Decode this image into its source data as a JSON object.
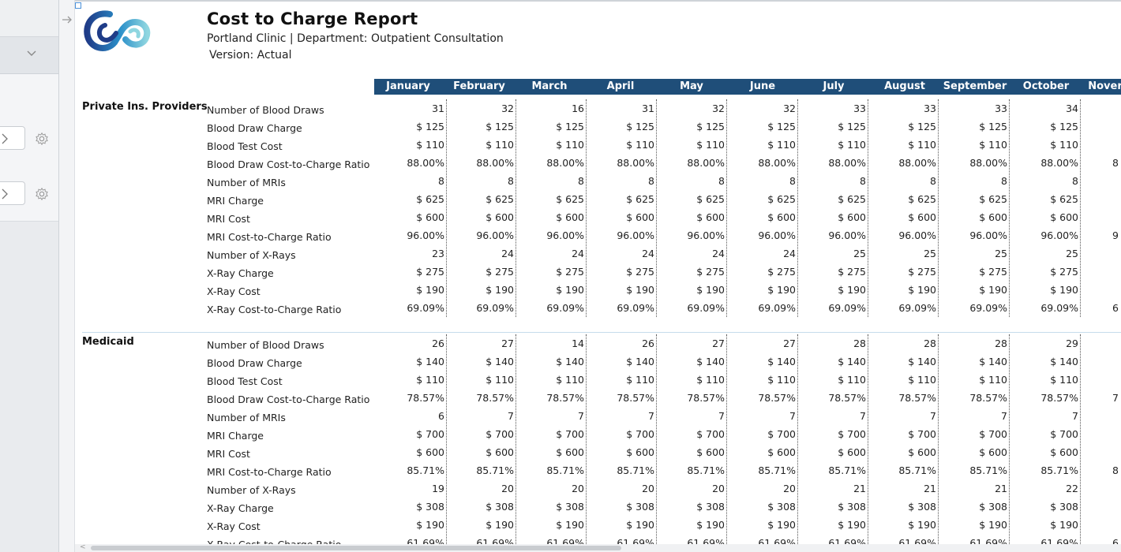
{
  "report": {
    "title": "Cost to Charge Report",
    "subtitle": "Portland Clinic | Department: Outpatient Consultation",
    "version": "Version: Actual"
  },
  "months": [
    "January",
    "February",
    "March",
    "April",
    "May",
    "June",
    "July",
    "August",
    "September",
    "October",
    "Nover"
  ],
  "groups": [
    {
      "name": "Private Ins. Providers",
      "rows": [
        {
          "label": "Number of  Blood Draws",
          "values": [
            "31",
            "32",
            "16",
            "31",
            "32",
            "32",
            "33",
            "33",
            "33",
            "34"
          ]
        },
        {
          "label": "Blood Draw Charge",
          "values": [
            "$ 125",
            "$ 125",
            "$ 125",
            "$ 125",
            "$ 125",
            "$ 125",
            "$ 125",
            "$ 125",
            "$ 125",
            "$ 125"
          ]
        },
        {
          "label": "Blood Test Cost",
          "values": [
            "$ 110",
            "$ 110",
            "$ 110",
            "$ 110",
            "$ 110",
            "$ 110",
            "$ 110",
            "$ 110",
            "$ 110",
            "$ 110"
          ]
        },
        {
          "label": "Blood Draw Cost-to-Charge Ratio",
          "values": [
            "88.00%",
            "88.00%",
            "88.00%",
            "88.00%",
            "88.00%",
            "88.00%",
            "88.00%",
            "88.00%",
            "88.00%",
            "88.00%"
          ],
          "edge": "8"
        },
        {
          "label": "Number of MRIs",
          "values": [
            "8",
            "8",
            "8",
            "8",
            "8",
            "8",
            "8",
            "8",
            "8",
            "8"
          ]
        },
        {
          "label": "MRI Charge",
          "values": [
            "$ 625",
            "$ 625",
            "$ 625",
            "$ 625",
            "$ 625",
            "$ 625",
            "$ 625",
            "$ 625",
            "$ 625",
            "$ 625"
          ]
        },
        {
          "label": "MRI Cost",
          "values": [
            "$ 600",
            "$ 600",
            "$ 600",
            "$ 600",
            "$ 600",
            "$ 600",
            "$ 600",
            "$ 600",
            "$ 600",
            "$ 600"
          ]
        },
        {
          "label": "MRI Cost-to-Charge Ratio",
          "values": [
            "96.00%",
            "96.00%",
            "96.00%",
            "96.00%",
            "96.00%",
            "96.00%",
            "96.00%",
            "96.00%",
            "96.00%",
            "96.00%"
          ],
          "edge": "9"
        },
        {
          "label": "Number of X-Rays",
          "values": [
            "23",
            "24",
            "24",
            "24",
            "24",
            "24",
            "25",
            "25",
            "25",
            "25"
          ]
        },
        {
          "label": "X-Ray Charge",
          "values": [
            "$ 275",
            "$ 275",
            "$ 275",
            "$ 275",
            "$ 275",
            "$ 275",
            "$ 275",
            "$ 275",
            "$ 275",
            "$ 275"
          ]
        },
        {
          "label": "X-Ray Cost",
          "values": [
            "$ 190",
            "$ 190",
            "$ 190",
            "$ 190",
            "$ 190",
            "$ 190",
            "$ 190",
            "$ 190",
            "$ 190",
            "$ 190"
          ]
        },
        {
          "label": "X-Ray Cost-to-Charge Ratio",
          "values": [
            "69.09%",
            "69.09%",
            "69.09%",
            "69.09%",
            "69.09%",
            "69.09%",
            "69.09%",
            "69.09%",
            "69.09%",
            "69.09%"
          ],
          "edge": "6"
        }
      ]
    },
    {
      "name": "Medicaid",
      "rows": [
        {
          "label": "Number of  Blood Draws",
          "values": [
            "26",
            "27",
            "14",
            "26",
            "27",
            "27",
            "28",
            "28",
            "28",
            "29"
          ]
        },
        {
          "label": "Blood Draw Charge",
          "values": [
            "$ 140",
            "$ 140",
            "$ 140",
            "$ 140",
            "$ 140",
            "$ 140",
            "$ 140",
            "$ 140",
            "$ 140",
            "$ 140"
          ]
        },
        {
          "label": "Blood Test Cost",
          "values": [
            "$ 110",
            "$ 110",
            "$ 110",
            "$ 110",
            "$ 110",
            "$ 110",
            "$ 110",
            "$ 110",
            "$ 110",
            "$ 110"
          ]
        },
        {
          "label": "Blood Draw Cost-to-Charge Ratio",
          "values": [
            "78.57%",
            "78.57%",
            "78.57%",
            "78.57%",
            "78.57%",
            "78.57%",
            "78.57%",
            "78.57%",
            "78.57%",
            "78.57%"
          ],
          "edge": "7"
        },
        {
          "label": "Number of MRIs",
          "values": [
            "6",
            "7",
            "7",
            "7",
            "7",
            "7",
            "7",
            "7",
            "7",
            "7"
          ]
        },
        {
          "label": "MRI Charge",
          "values": [
            "$ 700",
            "$ 700",
            "$ 700",
            "$ 700",
            "$ 700",
            "$ 700",
            "$ 700",
            "$ 700",
            "$ 700",
            "$ 700"
          ]
        },
        {
          "label": "MRI Cost",
          "values": [
            "$ 600",
            "$ 600",
            "$ 600",
            "$ 600",
            "$ 600",
            "$ 600",
            "$ 600",
            "$ 600",
            "$ 600",
            "$ 600"
          ]
        },
        {
          "label": "MRI Cost-to-Charge Ratio",
          "values": [
            "85.71%",
            "85.71%",
            "85.71%",
            "85.71%",
            "85.71%",
            "85.71%",
            "85.71%",
            "85.71%",
            "85.71%",
            "85.71%"
          ],
          "edge": "8"
        },
        {
          "label": "Number of X-Rays",
          "values": [
            "19",
            "20",
            "20",
            "20",
            "20",
            "20",
            "21",
            "21",
            "21",
            "22"
          ]
        },
        {
          "label": "X-Ray Charge",
          "values": [
            "$ 308",
            "$ 308",
            "$ 308",
            "$ 308",
            "$ 308",
            "$ 308",
            "$ 308",
            "$ 308",
            "$ 308",
            "$ 308"
          ]
        },
        {
          "label": "X-Ray Cost",
          "values": [
            "$ 190",
            "$ 190",
            "$ 190",
            "$ 190",
            "$ 190",
            "$ 190",
            "$ 190",
            "$ 190",
            "$ 190",
            "$ 190"
          ]
        },
        {
          "label": "X-Ray Cost-to-Charge Ratio",
          "values": [
            "61.69%",
            "61.69%",
            "61.69%",
            "61.69%",
            "61.69%",
            "61.69%",
            "61.69%",
            "61.69%",
            "61.69%",
            "61.69%"
          ],
          "edge": "6"
        }
      ]
    }
  ],
  "colors": {
    "header_bg": "#1f4e79",
    "header_text": "#ffffff",
    "separator": "#c6dcec"
  },
  "icons": [
    "chevron-down-icon",
    "chevron-right-icon",
    "gear-icon",
    "arrow-right-icon",
    "company-logo"
  ]
}
